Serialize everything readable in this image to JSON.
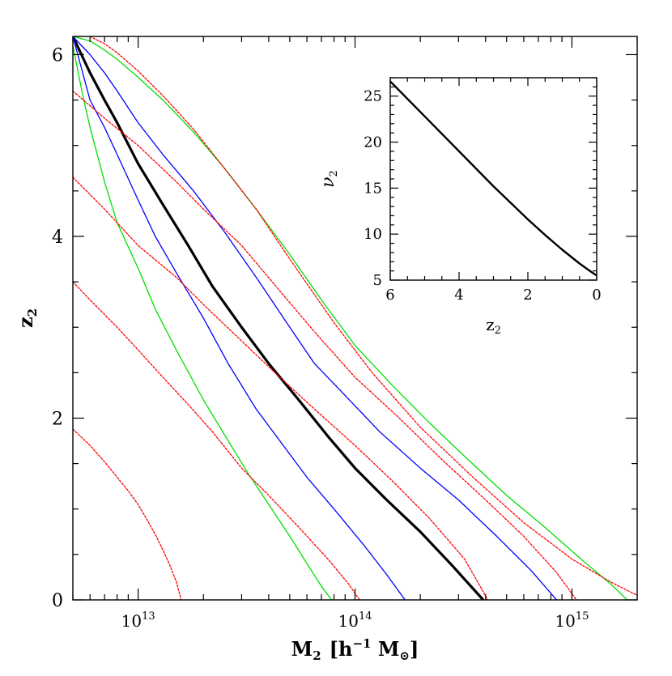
{
  "chart_data": [
    {
      "type": "line",
      "role": "main",
      "xlabel_main": "M",
      "xlabel_sub": "2",
      "xlabel_units": "[h",
      "xlabel_exp": "−1",
      "xlabel_units2": " M",
      "xlabel_sun": "⊙",
      "xlabel_close": "]",
      "ylabel_main": "z",
      "ylabel_sub": "2",
      "xscale": "log",
      "xlim": [
        5000000000000.0,
        2000000000000000.0
      ],
      "ylim": [
        0,
        6.2
      ],
      "x_ticks": [
        {
          "base": "10",
          "exp": "13",
          "value": 10000000000000.0
        },
        {
          "base": "10",
          "exp": "14",
          "value": 100000000000000.0
        },
        {
          "base": "10",
          "exp": "15",
          "value": 1000000000000000.0
        }
      ],
      "y_ticks": [
        "0",
        "2",
        "4",
        "6"
      ],
      "y_tick_values": [
        0,
        2,
        4,
        6
      ],
      "y_minor_step": 0.5,
      "colors": {
        "black": "#000000",
        "blue": "#0000ff",
        "green": "#00e000",
        "red": "#ff0000"
      },
      "series": [
        {
          "color": "black",
          "style": "solid",
          "width": "thick",
          "x": [
            5000000000000.0,
            6000000000000.0,
            7000000000000.0,
            8000000000000.0,
            10000000000000.0,
            13000000000000.0,
            17000000000000.0,
            22000000000000.0,
            30000000000000.0,
            40000000000000.0,
            55000000000000.0,
            75000000000000.0,
            100000000000000.0,
            140000000000000.0,
            200000000000000.0,
            280000000000000.0,
            390000000000000.0
          ],
          "y": [
            6.2,
            5.8,
            5.5,
            5.25,
            4.8,
            4.35,
            3.9,
            3.45,
            3.0,
            2.6,
            2.2,
            1.8,
            1.45,
            1.1,
            0.75,
            0.38,
            0.0
          ]
        },
        {
          "color": "blue",
          "style": "solid",
          "width": "thin",
          "x": [
            5000000000000.0,
            6000000000000.0,
            7000000000000.0,
            8000000000000.0,
            10000000000000.0,
            12000000000000.0,
            15000000000000.0,
            20000000000000.0,
            26000000000000.0,
            35000000000000.0,
            45000000000000.0,
            60000000000000.0,
            80000000000000.0,
            110000000000000.0,
            140000000000000.0,
            170000000000000.0
          ],
          "y": [
            6.2,
            5.5,
            5.2,
            4.9,
            4.4,
            4.0,
            3.6,
            3.1,
            2.6,
            2.1,
            1.75,
            1.35,
            1.0,
            0.6,
            0.28,
            0.0
          ]
        },
        {
          "color": "blue",
          "style": "solid",
          "width": "thin",
          "x": [
            5000000000000.0,
            6000000000000.0,
            7000000000000.0,
            8000000000000.0,
            10000000000000.0,
            13000000000000.0,
            18000000000000.0,
            25000000000000.0,
            35000000000000.0,
            50000000000000.0,
            65000000000000.0,
            90000000000000.0,
            130000000000000.0,
            200000000000000.0,
            300000000000000.0,
            450000000000000.0,
            650000000000000.0,
            850000000000000.0
          ],
          "y": [
            6.2,
            6.0,
            5.8,
            5.6,
            5.25,
            4.9,
            4.5,
            4.05,
            3.55,
            3.0,
            2.6,
            2.25,
            1.85,
            1.45,
            1.1,
            0.7,
            0.32,
            0.0
          ]
        },
        {
          "color": "green",
          "style": "solid",
          "width": "thin",
          "x": [
            5000000000000.0,
            5500000000000.0,
            6000000000000.0,
            7000000000000.0,
            8000000000000.0,
            10000000000000.0,
            12000000000000.0,
            15000000000000.0,
            20000000000000.0,
            26000000000000.0,
            32000000000000.0,
            40000000000000.0,
            50000000000000.0,
            60000000000000.0,
            70000000000000.0,
            78000000000000.0
          ],
          "y": [
            6.1,
            5.6,
            5.2,
            4.6,
            4.15,
            3.65,
            3.2,
            2.75,
            2.2,
            1.75,
            1.4,
            1.05,
            0.7,
            0.4,
            0.15,
            0.0
          ]
        },
        {
          "color": "green",
          "style": "solid",
          "width": "thin",
          "x": [
            5000000000000.0,
            6000000000000.0,
            7000000000000.0,
            8000000000000.0,
            10000000000000.0,
            13000000000000.0,
            18000000000000.0,
            25000000000000.0,
            35000000000000.0,
            50000000000000.0,
            70000000000000.0,
            100000000000000.0,
            150000000000000.0,
            220000000000000.0,
            330000000000000.0,
            500000000000000.0,
            750000000000000.0,
            1100000000000000.0,
            1500000000000000.0,
            1800000000000000.0
          ],
          "y": [
            6.2,
            6.15,
            6.05,
            5.95,
            5.75,
            5.5,
            5.15,
            4.75,
            4.3,
            3.8,
            3.3,
            2.8,
            2.35,
            1.95,
            1.55,
            1.15,
            0.8,
            0.45,
            0.18,
            0.0
          ]
        },
        {
          "color": "red",
          "style": "dotted",
          "width": "thin",
          "x": [
            5000000000000.0,
            6000000000000.0,
            7000000000000.0,
            8000000000000.0,
            9000000000000.0,
            10000000000000.0,
            11000000000000.0,
            12000000000000.0,
            13000000000000.0,
            14000000000000.0,
            15000000000000.0,
            15800000000000.0
          ],
          "y": [
            1.88,
            1.7,
            1.52,
            1.35,
            1.2,
            1.05,
            0.88,
            0.72,
            0.55,
            0.38,
            0.2,
            0.0
          ]
        },
        {
          "color": "red",
          "style": "dotted",
          "width": "thin",
          "x": [
            5000000000000.0,
            6000000000000.0,
            8000000000000.0,
            10000000000000.0,
            13000000000000.0,
            17000000000000.0,
            22000000000000.0,
            30000000000000.0,
            40000000000000.0,
            55000000000000.0,
            75000000000000.0,
            93000000000000.0,
            105000000000000.0
          ],
          "y": [
            3.5,
            3.3,
            3.0,
            2.75,
            2.45,
            2.15,
            1.85,
            1.45,
            1.15,
            0.8,
            0.45,
            0.18,
            0.0
          ]
        },
        {
          "color": "red",
          "style": "dotted",
          "width": "thin",
          "x": [
            5000000000000.0,
            7000000000000.0,
            10000000000000.0,
            15000000000000.0,
            20000000000000.0,
            30000000000000.0,
            45000000000000.0,
            65000000000000.0,
            100000000000000.0,
            150000000000000.0,
            220000000000000.0,
            320000000000000.0,
            410000000000000.0
          ],
          "y": [
            4.65,
            4.3,
            3.9,
            3.55,
            3.25,
            2.85,
            2.45,
            2.1,
            1.7,
            1.3,
            0.9,
            0.45,
            0.0
          ]
        },
        {
          "color": "red",
          "style": "dotted",
          "width": "thin",
          "x": [
            5000000000000.0,
            7000000000000.0,
            10000000000000.0,
            15000000000000.0,
            20000000000000.0,
            30000000000000.0,
            45000000000000.0,
            65000000000000.0,
            100000000000000.0,
            160000000000000.0,
            250000000000000.0,
            400000000000000.0,
            600000000000000.0,
            850000000000000.0,
            1050000000000000.0
          ],
          "y": [
            5.6,
            5.3,
            5.0,
            4.6,
            4.3,
            3.9,
            3.4,
            2.95,
            2.45,
            2.0,
            1.55,
            1.1,
            0.7,
            0.3,
            0.0
          ]
        },
        {
          "color": "red",
          "style": "dotted",
          "width": "thin",
          "x": [
            6000000000000.0,
            7000000000000.0,
            8000000000000.0,
            10000000000000.0,
            13000000000000.0,
            18000000000000.0,
            25000000000000.0,
            35000000000000.0,
            50000000000000.0,
            80000000000000.0,
            120000000000000.0,
            200000000000000.0,
            350000000000000.0,
            600000000000000.0,
            1000000000000000.0,
            1500000000000000.0,
            2000000000000000.0
          ],
          "y": [
            6.2,
            6.12,
            6.02,
            5.82,
            5.55,
            5.18,
            4.75,
            4.3,
            3.75,
            3.05,
            2.5,
            1.9,
            1.35,
            0.85,
            0.45,
            0.2,
            0.05
          ]
        }
      ]
    },
    {
      "type": "line",
      "role": "inset",
      "xlabel_main": "z",
      "xlabel_sub": "2",
      "ylabel_main": "ν",
      "ylabel_sub": "2",
      "xlim": [
        6,
        0
      ],
      "ylim": [
        5,
        27
      ],
      "x_ticks": [
        "6",
        "4",
        "2",
        "0"
      ],
      "x_tick_values": [
        6,
        4,
        2,
        0
      ],
      "y_ticks": [
        "5",
        "10",
        "15",
        "20",
        "25"
      ],
      "y_tick_values": [
        5,
        10,
        15,
        20,
        25
      ],
      "series": [
        {
          "color": "black",
          "style": "solid",
          "width": "thick",
          "x": [
            6.0,
            5.0,
            4.0,
            3.0,
            2.0,
            1.5,
            1.0,
            0.5,
            0.2,
            0.0
          ],
          "y": [
            26.6,
            22.8,
            19.0,
            15.2,
            11.6,
            9.9,
            8.3,
            6.8,
            6.0,
            5.5
          ]
        }
      ]
    }
  ]
}
